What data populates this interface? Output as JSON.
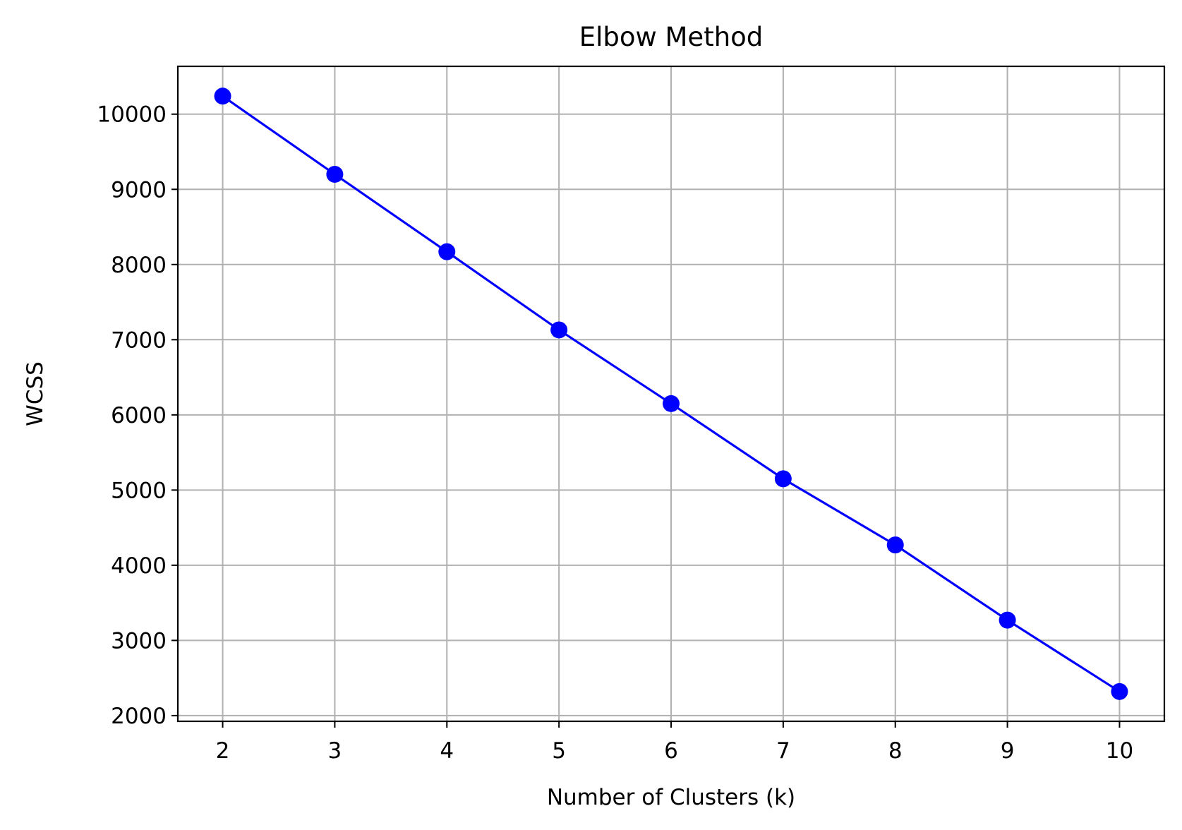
{
  "chart_data": {
    "type": "line",
    "title": "Elbow Method",
    "xlabel": "Number of Clusters (k)",
    "ylabel": "WCSS",
    "x": [
      2,
      3,
      4,
      5,
      6,
      7,
      8,
      9,
      10
    ],
    "series": [
      {
        "values": [
          10240,
          9200,
          8170,
          7130,
          6150,
          5150,
          4270,
          3270,
          2320
        ],
        "color": "#0000ff",
        "marker": "circle"
      }
    ],
    "xticks": [
      2,
      3,
      4,
      5,
      6,
      7,
      8,
      9,
      10
    ],
    "yticks": [
      2000,
      3000,
      4000,
      5000,
      6000,
      7000,
      8000,
      9000,
      10000
    ],
    "xlim": [
      1.6,
      10.4
    ],
    "ylim": [
      1924,
      10636
    ],
    "grid": true,
    "legend": "none"
  }
}
